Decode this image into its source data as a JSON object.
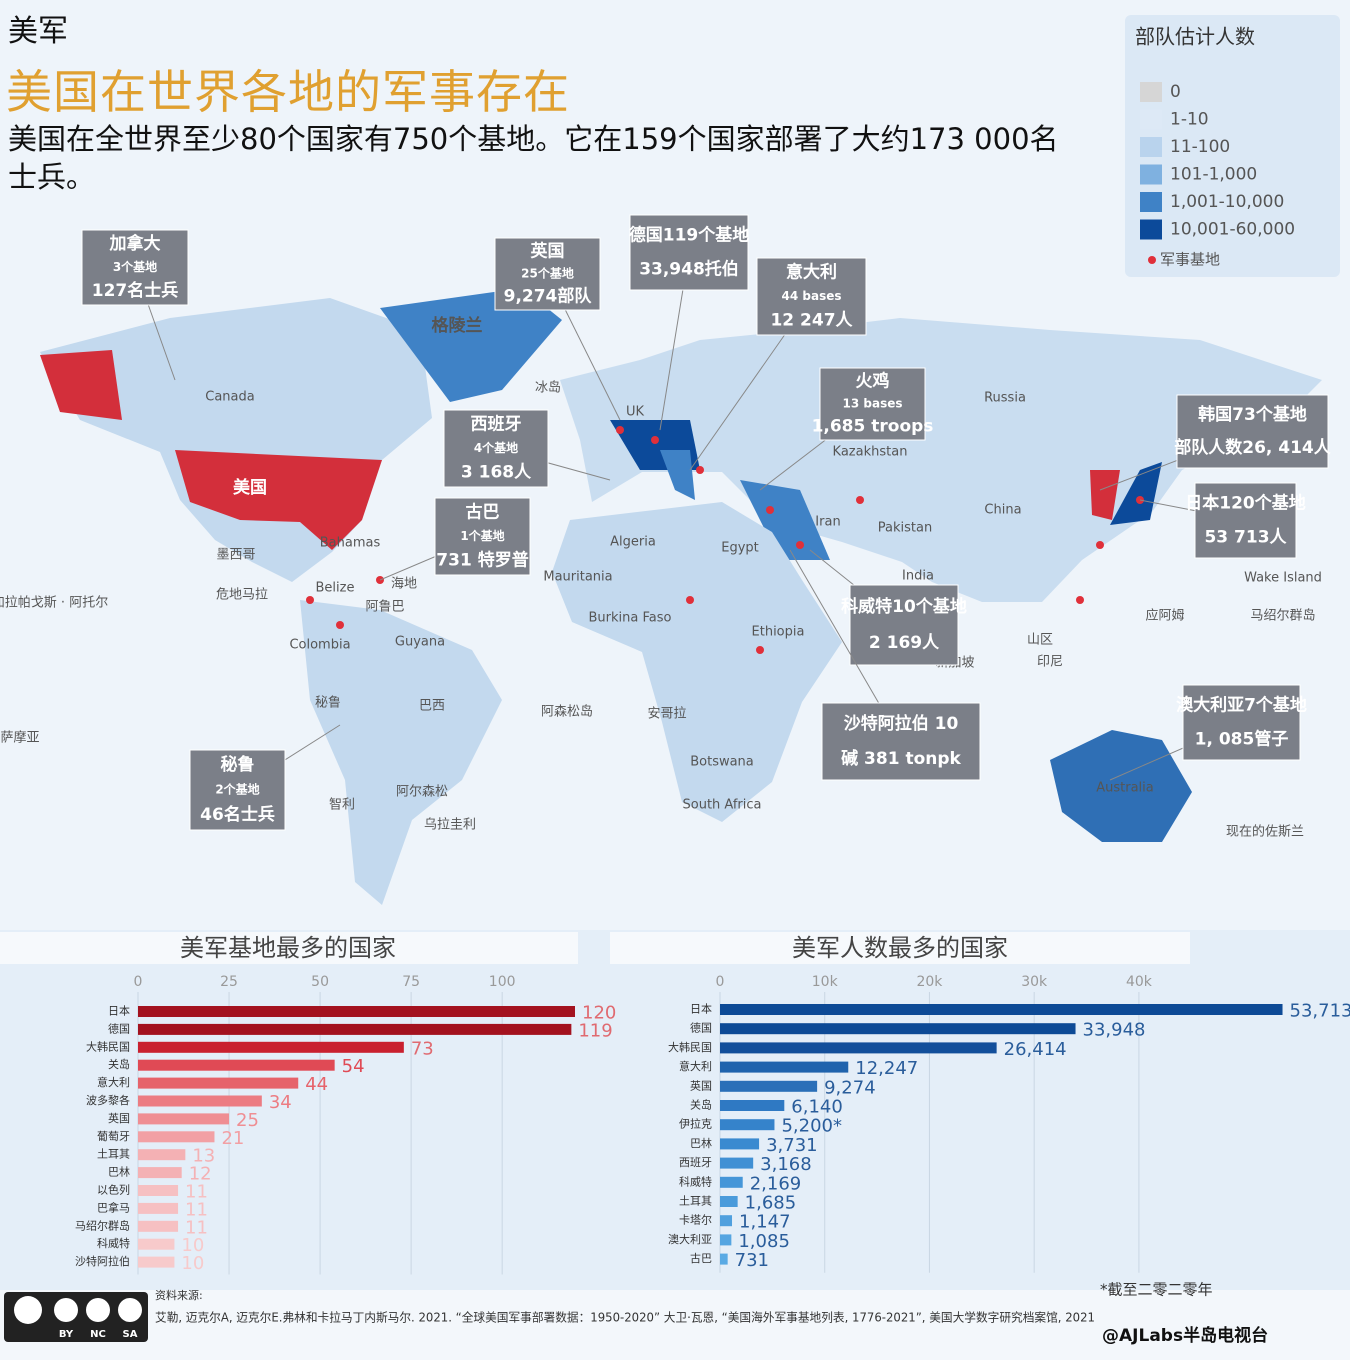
{
  "header": {
    "section": "美军",
    "title": "美国在世界各地的军事存在",
    "subtitle": "美国在全世界至少80个国家有750个基地。它在159个国家部署了大约173 000名士兵。"
  },
  "legend": {
    "title": "部队估计人数",
    "items": [
      {
        "label": "0",
        "color": "#d6d6d6"
      },
      {
        "label": "1-10",
        "color": "#dde9f6"
      },
      {
        "label": "11-100",
        "color": "#b9d3ed"
      },
      {
        "label": "101-1,000",
        "color": "#7fb1e0"
      },
      {
        "label": "1,001-10,000",
        "color": "#3f82c6"
      },
      {
        "label": "10,001-60,000",
        "color": "#0c4a9a"
      }
    ],
    "base_label": "军事基地",
    "base_color": "#e0303a"
  },
  "callouts": [
    {
      "lines": [
        "加拿大",
        "3个基地",
        "127名士兵"
      ]
    },
    {
      "lines": [
        "英国",
        "25个基地",
        "9,274部队"
      ]
    },
    {
      "lines": [
        "德国119个基地",
        "33,948托伯"
      ]
    },
    {
      "lines": [
        "意大利",
        "44 bases",
        "12 247人"
      ]
    },
    {
      "lines": [
        "火鸡",
        "13 bases",
        "1,685 troops"
      ]
    },
    {
      "lines": [
        "韩国73个基地",
        "部队人数26, 414人"
      ]
    },
    {
      "lines": [
        "日本120个基地",
        "53 713人"
      ]
    },
    {
      "lines": [
        "西班牙",
        "4个基地",
        "3 168人"
      ]
    },
    {
      "lines": [
        "古巴",
        "1个基地",
        "731 特罗普"
      ]
    },
    {
      "lines": [
        "科威特10个基地",
        "2 169人"
      ]
    },
    {
      "lines": [
        "沙特阿拉伯 10",
        "碱 381 tonpk"
      ]
    },
    {
      "lines": [
        "澳大利亚7个基地",
        "1, 085管子"
      ]
    },
    {
      "lines": [
        "秘鲁",
        "2个基地",
        "46名士兵"
      ]
    }
  ],
  "map_labels": [
    "Canada",
    "美国",
    "格陵兰",
    "冰岛",
    "UK",
    "Russia",
    "China",
    "Kazakhstan",
    "Iran",
    "Pakistan",
    "India",
    "Algeria",
    "Egypt",
    "Mauritania",
    "Burkina Faso",
    "Ethiopia",
    "Botswana",
    "South Africa",
    "安哥拉",
    "阿森松岛",
    "Bahamas",
    "墨西哥",
    "危地马拉",
    "Belize",
    "海地",
    "阿鲁巴",
    "Colombia",
    "Guyana",
    "秘鲁",
    "巴西",
    "智利",
    "阿尔森松",
    "乌拉圭利",
    "Australia",
    "现在的佐斯兰",
    "Wake Island",
    "马绍尔群岛",
    "应阿姆",
    "山区",
    "印尼",
    "新加坡",
    "加拉帕戈斯 · 阿托尔",
    "萨摩亚"
  ],
  "chart_data": [
    {
      "type": "bar",
      "orientation": "horizontal",
      "title": "美军基地最多的国家",
      "categories": [
        "日本",
        "德国",
        "大韩民国",
        "关岛",
        "意大利",
        "波多黎各",
        "英国",
        "葡萄牙",
        "土耳其",
        "巴林",
        "以色列",
        "巴拿马",
        "马绍尔群岛",
        "科威特",
        "沙特阿拉伯"
      ],
      "values": [
        120,
        119,
        73,
        54,
        44,
        34,
        25,
        21,
        13,
        12,
        11,
        11,
        11,
        10,
        10
      ],
      "colors": [
        "#a3121f",
        "#a3121f",
        "#c9202f",
        "#e04a55",
        "#e6636b",
        "#ec7c82",
        "#ef8e93",
        "#f2a0a4",
        "#f4b1b4",
        "#f4b1b4",
        "#f6c0c2",
        "#f6c0c2",
        "#f6c0c2",
        "#f7cacb",
        "#f7cacb"
      ],
      "xlim": [
        0,
        120
      ],
      "xticks": [
        0,
        25,
        50,
        75,
        100
      ],
      "grid": true
    },
    {
      "type": "bar",
      "orientation": "horizontal",
      "title": "美军人数最多的国家",
      "categories": [
        "日本",
        "德国",
        "大韩民国",
        "意大利",
        "英国",
        "关岛",
        "伊拉克",
        "巴林",
        "西班牙",
        "科威特",
        "土耳其",
        "卡塔尔",
        "澳大利亚",
        "古巴"
      ],
      "values": [
        53713,
        33948,
        26414,
        12247,
        9274,
        6140,
        5200,
        3731,
        3168,
        2169,
        1685,
        1147,
        1085,
        731
      ],
      "value_labels": [
        "53,713",
        "33,948",
        "26,414",
        "12,247",
        "9,274",
        "6,140",
        "5,200*",
        "3,731",
        "3,168",
        "2,169",
        "1,685",
        "1,147",
        "1,085",
        "731"
      ],
      "colors": [
        "#0d4a96",
        "#0d4a96",
        "#124f9b",
        "#1f63ad",
        "#2a6fb8",
        "#2f79c3",
        "#3583cb",
        "#3a8ad0",
        "#4090d4",
        "#4596d8",
        "#4a9bdb",
        "#50a0de",
        "#55a5e1",
        "#5aaae4"
      ],
      "xlim": [
        0,
        55000
      ],
      "xticks": [
        0,
        {
          "value": 10000,
          "label": "10k"
        },
        {
          "value": 20000,
          "label": "20k"
        },
        {
          "value": 30000,
          "label": "30k"
        },
        {
          "value": 40000,
          "label": "40k"
        }
      ],
      "grid": true
    }
  ],
  "footer": {
    "source_heading": "资料来源:",
    "source": "艾勒, 迈克尔A, 迈克尔E.弗林和卡拉马丁内斯马尔. 2021. “全球美国军事部署数据：1950-2020” 大卫·瓦恩, “美国海外军事基地列表, 1776-2021”, 美国大学数字研究档案馆, 2021",
    "note": "*截至二零二零年",
    "credit": "@AJLabs半岛电视台",
    "license": [
      "BY",
      "NC",
      "SA"
    ]
  }
}
